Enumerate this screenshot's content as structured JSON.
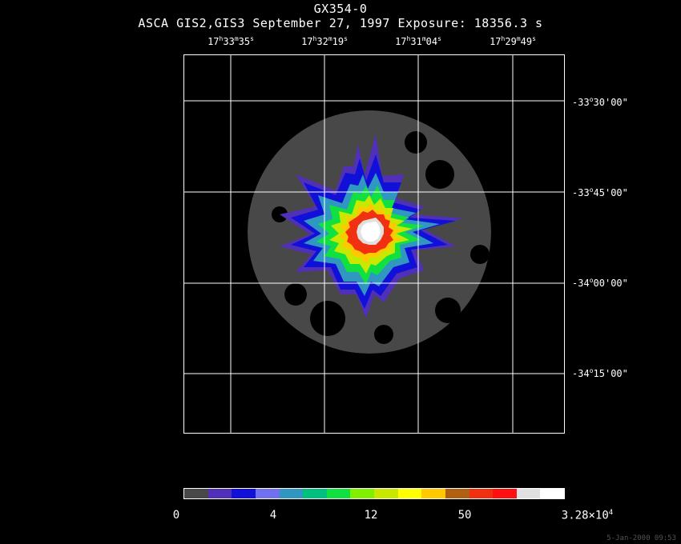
{
  "title": "GX354-0",
  "subtitle": "ASCA GIS2,GIS3 September 27, 1997 Exposure: 18356.3 s",
  "ra_labels": [
    {
      "h": "17",
      "m": "33",
      "s": "35"
    },
    {
      "h": "17",
      "m": "32",
      "s": "19"
    },
    {
      "h": "17",
      "m": "31",
      "s": "04"
    },
    {
      "h": "17",
      "m": "29",
      "s": "49"
    }
  ],
  "dec_labels": [
    {
      "d": "-33",
      "m": "30'00\""
    },
    {
      "d": "-33",
      "m": "45'00\""
    },
    {
      "d": "-34",
      "m": "00'00\""
    },
    {
      "d": "-34",
      "m": "15'00\""
    }
  ],
  "colorbar": {
    "colors": [
      "#484848",
      "#5030b8",
      "#1010d8",
      "#7070f0",
      "#3098c0",
      "#00c080",
      "#10e040",
      "#80f000",
      "#c8e800",
      "#ffff00",
      "#ffc800",
      "#b06010",
      "#f03010",
      "#ff1010",
      "#e0e0e0",
      "#ffffff"
    ],
    "labels": [
      {
        "text": "0"
      },
      {
        "text": "4"
      },
      {
        "text": "12"
      },
      {
        "text": "50"
      },
      {
        "text": "3.28×10",
        "exp": "4"
      }
    ]
  },
  "date_stamp": "5-Jan-2000 09:53"
}
